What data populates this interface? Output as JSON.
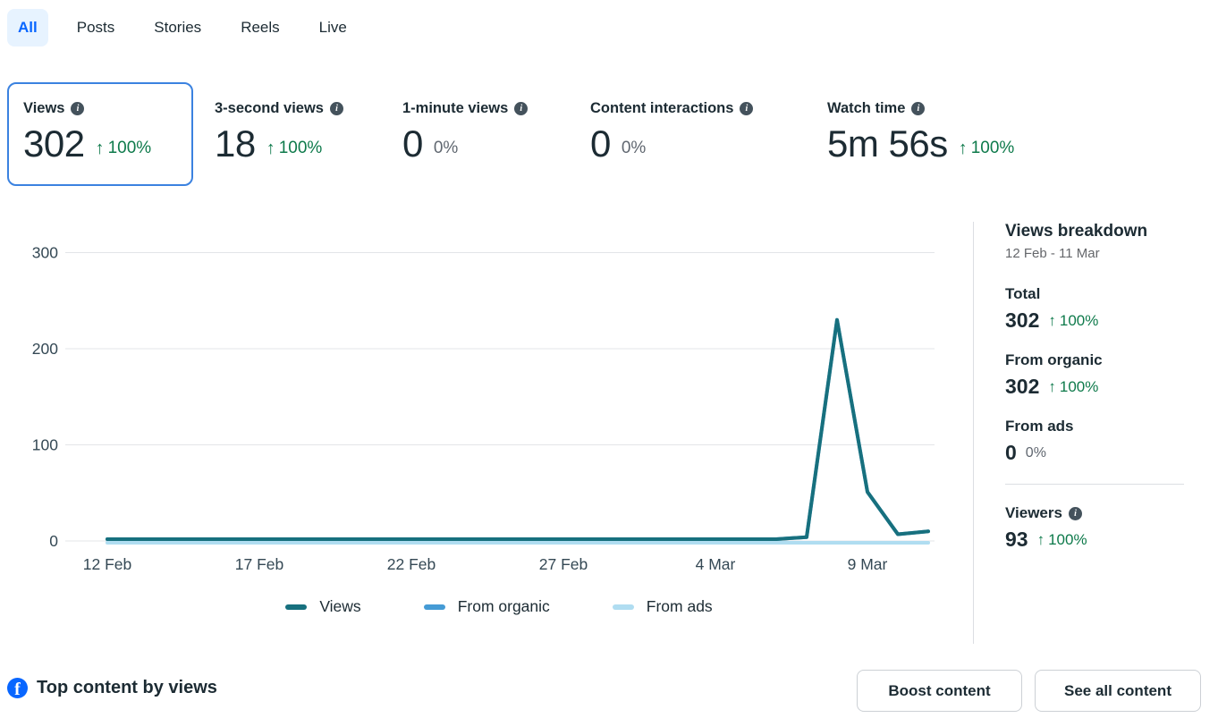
{
  "ui": {
    "up_arrow": "↑",
    "info_glyph": "i",
    "fb_glyph": "f"
  },
  "colors": {
    "accent_blue": "#0866ff",
    "tab_active_bg": "#e7f3ff",
    "selected_card_border": "#3b82e0",
    "positive_green": "#0e7a4b",
    "neutral_gray": "#606770",
    "views_teal": "#17707e",
    "organic_blue": "#459bd5",
    "ads_lightblue": "#b0ddf1"
  },
  "tabs": [
    {
      "label": "All",
      "active": true
    },
    {
      "label": "Posts",
      "active": false
    },
    {
      "label": "Stories",
      "active": false
    },
    {
      "label": "Reels",
      "active": false
    },
    {
      "label": "Live",
      "active": false
    }
  ],
  "metrics": [
    {
      "label": "Views",
      "value": "302",
      "change": "100%",
      "trend": "up",
      "selected": true
    },
    {
      "label": "3-second views",
      "value": "18",
      "change": "100%",
      "trend": "up",
      "selected": false
    },
    {
      "label": "1-minute views",
      "value": "0",
      "change": "0%",
      "trend": "flat",
      "selected": false
    },
    {
      "label": "Content interactions",
      "value": "0",
      "change": "0%",
      "trend": "flat",
      "selected": false
    },
    {
      "label": "Watch time",
      "value": "5m 56s",
      "change": "100%",
      "trend": "up",
      "selected": false
    }
  ],
  "chart_data": {
    "type": "line",
    "title": "",
    "xlabel": "",
    "ylabel": "",
    "ylim": [
      0,
      300
    ],
    "yticks": [
      0,
      100,
      200,
      300
    ],
    "grid": true,
    "legend_position": "bottom",
    "categories": [
      "12 Feb",
      "13 Feb",
      "14 Feb",
      "15 Feb",
      "16 Feb",
      "17 Feb",
      "18 Feb",
      "19 Feb",
      "20 Feb",
      "21 Feb",
      "22 Feb",
      "23 Feb",
      "24 Feb",
      "25 Feb",
      "26 Feb",
      "27 Feb",
      "28 Feb",
      "1 Mar",
      "2 Mar",
      "3 Mar",
      "4 Mar",
      "5 Mar",
      "6 Mar",
      "7 Mar",
      "8 Mar",
      "9 Mar",
      "10 Mar",
      "11 Mar"
    ],
    "xticks": [
      {
        "day": 0,
        "label": "12 Feb"
      },
      {
        "day": 5,
        "label": "17 Feb"
      },
      {
        "day": 10,
        "label": "22 Feb"
      },
      {
        "day": 15,
        "label": "27 Feb"
      },
      {
        "day": 20,
        "label": "4 Mar"
      },
      {
        "day": 25,
        "label": "9 Mar"
      }
    ],
    "series": [
      {
        "name": "Views",
        "color": "#17707e",
        "values": [
          0,
          0,
          0,
          0,
          0,
          0,
          0,
          0,
          0,
          0,
          0,
          0,
          0,
          0,
          0,
          0,
          0,
          0,
          0,
          0,
          0,
          0,
          0,
          4,
          230,
          51,
          7,
          10
        ]
      },
      {
        "name": "From organic",
        "color": "#459bd5",
        "values": [
          0,
          0,
          0,
          0,
          0,
          0,
          0,
          0,
          0,
          0,
          0,
          0,
          0,
          0,
          0,
          0,
          0,
          0,
          0,
          0,
          0,
          0,
          0,
          4,
          230,
          51,
          7,
          10
        ]
      },
      {
        "name": "From ads",
        "color": "#b0ddf1",
        "values": [
          0,
          0,
          0,
          0,
          0,
          0,
          0,
          0,
          0,
          0,
          0,
          0,
          0,
          0,
          0,
          0,
          0,
          0,
          0,
          0,
          0,
          0,
          0,
          0,
          0,
          0,
          0,
          0
        ]
      }
    ]
  },
  "breakdown": {
    "title": "Views breakdown",
    "range": "12 Feb - 11 Mar",
    "stats": [
      {
        "label": "Total",
        "value": "302",
        "change": "100%",
        "trend": "up"
      },
      {
        "label": "From organic",
        "value": "302",
        "change": "100%",
        "trend": "up"
      },
      {
        "label": "From ads",
        "value": "0",
        "change": "0%",
        "trend": "flat"
      }
    ],
    "viewers": {
      "label": "Viewers",
      "value": "93",
      "change": "100%",
      "trend": "up"
    }
  },
  "bottom": {
    "title": "Top content by views",
    "boost_label": "Boost content",
    "see_all_label": "See all content"
  }
}
